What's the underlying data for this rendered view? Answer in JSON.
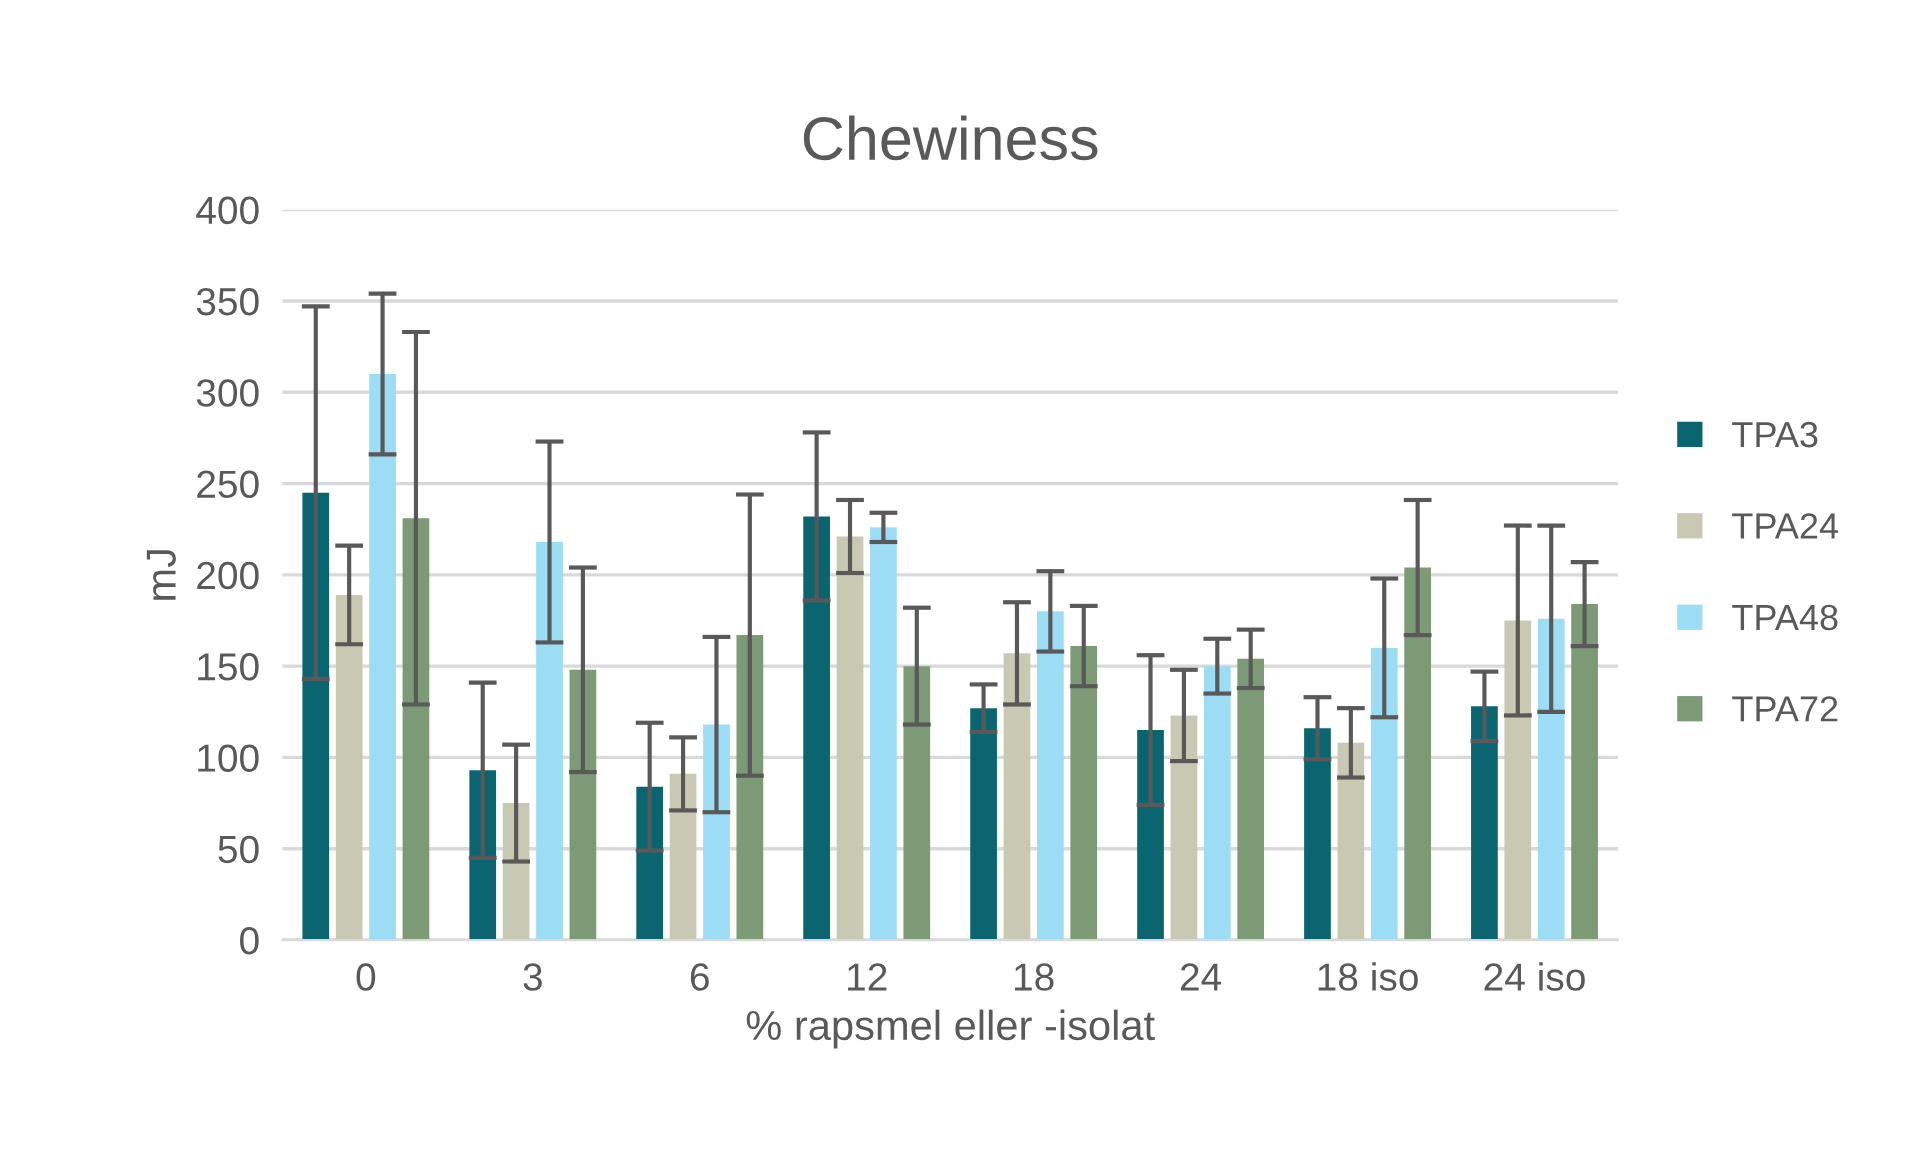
{
  "chart_data": {
    "type": "bar",
    "title": "Chewiness",
    "xlabel": "% rapsmel eller -isolat",
    "ylabel": "mJ",
    "categories": [
      "0",
      "3",
      "6",
      "12",
      "18",
      "24",
      "18 iso",
      "24 iso"
    ],
    "series": [
      {
        "name": "TPA3",
        "color": "#0a6570",
        "values": [
          245,
          93,
          84,
          232,
          127,
          115,
          116,
          128
        ],
        "errors": [
          102,
          48,
          35,
          46,
          13,
          41,
          17,
          19
        ]
      },
      {
        "name": "TPA24",
        "color": "#c8c8b3",
        "values": [
          189,
          75,
          91,
          221,
          157,
          123,
          108,
          175
        ],
        "errors": [
          27,
          32,
          20,
          20,
          28,
          25,
          19,
          52
        ]
      },
      {
        "name": "TPA48",
        "color": "#9ddcf5",
        "values": [
          310,
          218,
          118,
          226,
          180,
          150,
          160,
          176
        ],
        "errors": [
          44,
          55,
          48,
          8,
          22,
          15,
          38,
          51
        ]
      },
      {
        "name": "TPA72",
        "color": "#7d9a77",
        "values": [
          231,
          148,
          167,
          150,
          161,
          154,
          204,
          184
        ],
        "errors": [
          102,
          56,
          77,
          32,
          22,
          16,
          37,
          23
        ]
      }
    ],
    "ylim": [
      0,
      400
    ],
    "yticks": [
      0,
      50,
      100,
      150,
      200,
      250,
      300,
      350,
      400
    ],
    "grid": "y",
    "legend": "right"
  }
}
